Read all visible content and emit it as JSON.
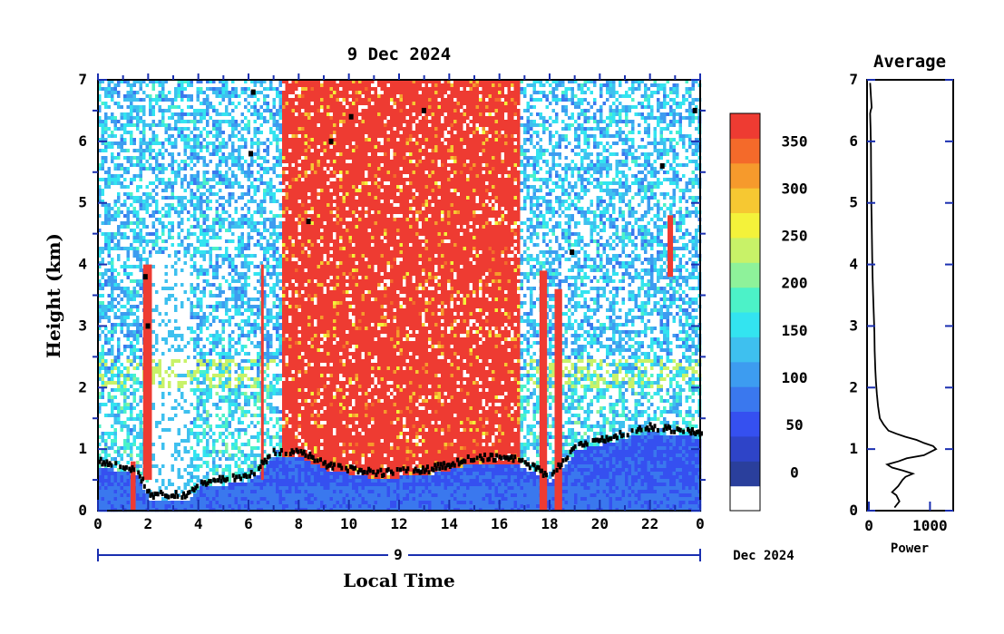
{
  "chart_data": [
    {
      "type": "heatmap",
      "title": "9 Dec 2024",
      "xlabel": "Local Time",
      "ylabel": "Height (km)",
      "x_ticks": [
        "0",
        "2",
        "4",
        "6",
        "8",
        "10",
        "12",
        "14",
        "16",
        "18",
        "20",
        "22",
        "0"
      ],
      "y_ticks": [
        "0",
        "1",
        "2",
        "3",
        "4",
        "5",
        "6",
        "7"
      ],
      "xlim": [
        0,
        24
      ],
      "ylim": [
        0,
        7
      ],
      "date_bar": {
        "day_label": "9",
        "month_label": "Dec 2024"
      },
      "colorbar": {
        "ticks": [
          "0",
          "50",
          "100",
          "150",
          "200",
          "250",
          "300",
          "350"
        ],
        "tick_values": [
          0,
          50,
          100,
          150,
          200,
          250,
          300,
          350
        ],
        "range": [
          -40,
          380
        ],
        "colors": [
          "#ffffff",
          "#2a3f9c",
          "#2e44c8",
          "#3550f0",
          "#3a78ee",
          "#3d9cf0",
          "#3ec0ef",
          "#33e4f0",
          "#4cf2c8",
          "#8ef29a",
          "#c8f268",
          "#f4f23a",
          "#f6c832",
          "#f69a2c",
          "#f46a2a",
          "#ee3b32"
        ]
      },
      "notes": "Vertical time-height backscatter power intensity; strong return near the surface below ~1.3 km, high return between ~7 and 17 local time."
    },
    {
      "type": "line",
      "title": "Average",
      "xlabel": "Power",
      "ylabel": "",
      "x_ticks": [
        "0",
        "1000"
      ],
      "y_ticks": [
        "0",
        "1",
        "2",
        "3",
        "4",
        "5",
        "6",
        "7"
      ],
      "xlim": [
        -30,
        1380
      ],
      "ylim": [
        0,
        7
      ],
      "series": [
        {
          "x": [
            420,
            500,
            450,
            380,
            480,
            550,
            600,
            720,
            560,
            380,
            300,
            480,
            620,
            900,
            1100,
            1050,
            900,
            780,
            600,
            450,
            320,
            240,
            180,
            150,
            130,
            115,
            105,
            95,
            90,
            80,
            70,
            60,
            55,
            50,
            45,
            40,
            38,
            36,
            34,
            30,
            28,
            25,
            22,
            20,
            30,
            45,
            35,
            20
          ],
          "y": [
            0.05,
            0.15,
            0.25,
            0.3,
            0.4,
            0.5,
            0.55,
            0.6,
            0.65,
            0.7,
            0.75,
            0.8,
            0.85,
            0.9,
            1.0,
            1.05,
            1.1,
            1.15,
            1.2,
            1.25,
            1.3,
            1.4,
            1.5,
            1.7,
            1.9,
            2.1,
            2.3,
            2.6,
            2.9,
            3.2,
            3.5,
            3.8,
            4.1,
            4.4,
            4.7,
            5.0,
            5.3,
            5.6,
            5.9,
            6.1,
            6.2,
            6.3,
            6.4,
            6.45,
            6.5,
            6.55,
            6.7,
            6.95
          ]
        }
      ]
    }
  ]
}
